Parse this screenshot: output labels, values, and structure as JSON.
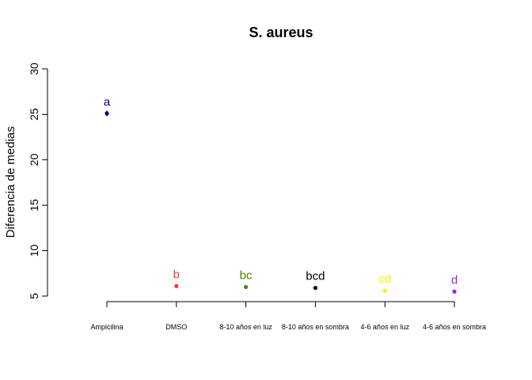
{
  "chart_data": {
    "type": "scatter",
    "title": "S. aureus",
    "xlabel": "",
    "ylabel": "Diferencia de medias",
    "ylim": [
      5,
      30
    ],
    "yticks": [
      5,
      10,
      15,
      20,
      25,
      30
    ],
    "grid": false,
    "legend": "none",
    "categories": [
      "Ampicilina",
      "DMSO",
      "8-10 años en luz",
      "8-10 años en sombra",
      "4-6 años en luz",
      "4-6 años en sombra"
    ],
    "values": [
      25.1,
      6.1,
      6.0,
      5.9,
      5.6,
      5.5
    ],
    "error": [
      0.3,
      0.0,
      0.0,
      0.0,
      0.0,
      0.0
    ],
    "letters": [
      "a",
      "b",
      "bc",
      "bcd",
      "cd",
      "d"
    ],
    "colors": [
      "#00008B",
      "#EE3B3B",
      "#458B00",
      "#000000",
      "#FFEE00",
      "#8A2BE2"
    ]
  }
}
